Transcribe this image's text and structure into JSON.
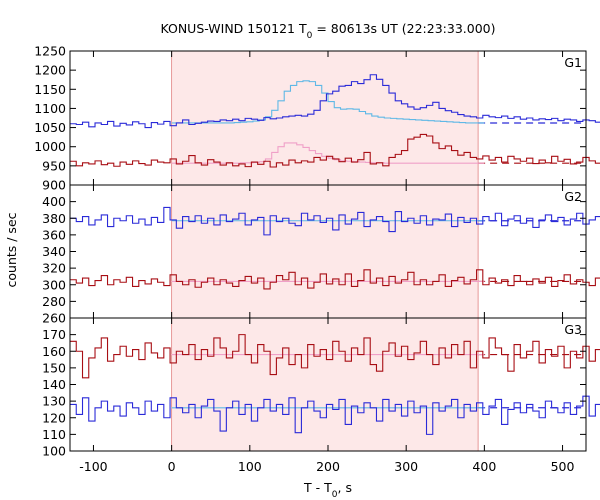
{
  "chart_data": {
    "type": "line",
    "title_main": "KONUS-WIND 150121 T",
    "title_sub": "0",
    "title_rest": " = 80613s UT (22:23:33.000)",
    "xlabel_main": "T - T",
    "xlabel_sub": "0",
    "xlabel_rest": ", s",
    "ylabel": "counts / sec",
    "xlim": [
      -130,
      530
    ],
    "x_ticks": [
      -100,
      0,
      100,
      200,
      300,
      400,
      500
    ],
    "x_tick_labels": [
      "-100",
      "0",
      "100",
      "200",
      "300",
      "400",
      "500"
    ],
    "highlight_interval": [
      0,
      392
    ],
    "highlight_color": "#fde8e8",
    "bin_width_s": 8,
    "data_x_range": [
      -130,
      392
    ],
    "colors": {
      "blue": "#2a2ad8",
      "red": "#a80e14",
      "blue_fit": "#5fb8e6",
      "red_fit": "#f0a0c8"
    },
    "panels": [
      {
        "label": "G1",
        "ylim": [
          900,
          1250
        ],
        "y_ticks": [
          900,
          950,
          1000,
          1050,
          1100,
          1150,
          1200,
          1250
        ],
        "y_tick_labels": [
          "900",
          "950",
          "1000",
          "1050",
          "1100",
          "1150",
          "1200",
          "1250"
        ],
        "series": [
          {
            "color": "blue",
            "background_level": 1062,
            "start_x": -130,
            "values": [
              1060,
              1058,
              1064,
              1052,
              1062,
              1058,
              1066,
              1054,
              1061,
              1057,
              1065,
              1060,
              1050,
              1063,
              1059,
              1066,
              1055,
              1062,
              1070,
              1058,
              1061,
              1064,
              1067,
              1066,
              1070,
              1068,
              1072,
              1068,
              1074,
              1072,
              1069,
              1076,
              1073,
              1075,
              1078,
              1080,
              1082,
              1080,
              1085,
              1095,
              1120,
              1138,
              1145,
              1158,
              1160,
              1170,
              1165,
              1175,
              1188,
              1176,
              1160,
              1140,
              1120,
              1112,
              1104,
              1098,
              1102,
              1108,
              1116,
              1100,
              1094,
              1090,
              1084,
              1080,
              1078,
              1075,
              1082,
              1078,
              1076,
              1080,
              1074,
              1078,
              1072,
              1075,
              1070,
              1073,
              1071,
              1074,
              1068,
              1072,
              1070,
              1066,
              1070,
              1068,
              1064,
              1069,
              1062,
              1066,
              1060,
              1064,
              1058,
              1062,
              1040
            ],
            "fit_from_x": 0,
            "fit": [
              1062,
              1062,
              1062,
              1062,
              1062,
              1062,
              1062,
              1062,
              1062,
              1062,
              1063,
              1064,
              1065,
              1067,
              1070,
              1078,
              1095,
              1120,
              1145,
              1160,
              1170,
              1172,
              1170,
              1160,
              1140,
              1118,
              1102,
              1098,
              1099,
              1098,
              1092,
              1086,
              1080,
              1077,
              1075,
              1074,
              1073,
              1072,
              1071,
              1070,
              1069,
              1068,
              1067,
              1066,
              1065,
              1064,
              1063,
              1062,
              1062,
              1062
            ]
          },
          {
            "color": "red",
            "background_level": 957,
            "start_x": -130,
            "values": [
              962,
              950,
              958,
              955,
              963,
              953,
              957,
              949,
              960,
              954,
              963,
              956,
              952,
              965,
              960,
              958,
              968,
              955,
              962,
              977,
              958,
              952,
              966,
              960,
              952,
              958,
              950,
              955,
              948,
              960,
              954,
              962,
              947,
              958,
              952,
              965,
              958,
              963,
              960,
              972,
              965,
              975,
              968,
              961,
              970,
              960,
              966,
              985,
              955,
              958,
              950,
              972,
              980,
              990,
              1020,
              1025,
              1032,
              1028,
              1010,
              995,
              1002,
              990,
              978,
              985,
              972,
              968,
              976,
              965,
              972,
              960,
              975,
              968,
              962,
              970,
              956,
              965,
              958,
              975,
              962,
              967,
              955,
              960,
              972,
              963,
              957,
              966,
              960,
              955,
              970,
              952,
              958,
              944,
              946
            ],
            "fit_from_x": 0,
            "fit": [
              957,
              957,
              957,
              957,
              957,
              957,
              957,
              957,
              957,
              957,
              957,
              958,
              958,
              959,
              961,
              968,
              985,
              1000,
              1010,
              1010,
              1005,
              998,
              990,
              982,
              975,
              970,
              966,
              963,
              962,
              961,
              960,
              959,
              958,
              958,
              957,
              957,
              957,
              957,
              957,
              957,
              957,
              957,
              957,
              957,
              957,
              957,
              957,
              957,
              957,
              957
            ]
          }
        ]
      },
      {
        "label": "G2",
        "ylim": [
          260,
          420
        ],
        "y_ticks": [
          260,
          280,
          300,
          320,
          340,
          360,
          380,
          400
        ],
        "y_tick_labels": [
          "260",
          "280",
          "300",
          "320",
          "340",
          "360",
          "380",
          "400"
        ],
        "series": [
          {
            "color": "blue",
            "background_level": 377,
            "start_x": -130,
            "values": [
              380,
              376,
              382,
              372,
              378,
              384,
              370,
              380,
              377,
              383,
              374,
              379,
              372,
              381,
              375,
              393,
              378,
              368,
              382,
              376,
              383,
              374,
              380,
              372,
              384,
              376,
              379,
              386,
              372,
              378,
              381,
              360,
              383,
              376,
              380,
              374,
              371,
              386,
              378,
              383,
              375,
              380,
              366,
              384,
              373,
              379,
              387,
              370,
              378,
              382,
              376,
              364,
              388,
              376,
              380,
              374,
              383,
              372,
              379,
              378,
              385,
              370,
              381,
              375,
              380,
              373,
              382,
              377,
              386,
              371,
              379,
              383,
              374,
              380,
              369,
              378,
              384,
              376,
              381,
              372,
              379,
              386,
              373,
              378,
              382,
              370,
              380,
              377,
              383,
              374,
              379,
              376,
              362
            ],
            "fit_from_x": 0,
            "fit": [
              377,
              377,
              377,
              377,
              377,
              377,
              377,
              377,
              377,
              377,
              377,
              377,
              377,
              377,
              377,
              377,
              377,
              377,
              377,
              377,
              377,
              377,
              377,
              377,
              377,
              377,
              377,
              377,
              377,
              377,
              377,
              377,
              377,
              377,
              377,
              377,
              377,
              377,
              377,
              377,
              377,
              377,
              377,
              377,
              377,
              377,
              377,
              377,
              377,
              377
            ]
          },
          {
            "color": "red",
            "background_level": 304,
            "start_x": -130,
            "values": [
              306,
              302,
              308,
              299,
              305,
              311,
              300,
              306,
              303,
              309,
              298,
              305,
              301,
              307,
              303,
              299,
              312,
              304,
              300,
              306,
              297,
              303,
              308,
              300,
              306,
              302,
              298,
              305,
              310,
              302,
              308,
              295,
              303,
              311,
              306,
              315,
              300,
              308,
              296,
              303,
              313,
              301,
              307,
              300,
              313,
              298,
              305,
              318,
              302,
              308,
              299,
              310,
              302,
              306,
              315,
              300,
              306,
              300,
              304,
              312,
              298,
              305,
              309,
              301,
              306,
              318,
              300,
              308,
              302,
              306,
              299,
              311,
              304,
              300,
              307,
              302,
              309,
              298,
              305,
              312,
              301,
              306,
              303,
              299,
              308,
              302,
              306,
              300,
              310,
              304,
              301,
              308,
              305
            ],
            "fit_from_x": 0,
            "fit": [
              304,
              304,
              304,
              304,
              304,
              304,
              304,
              304,
              304,
              304,
              304,
              304,
              304,
              304,
              304,
              304,
              304,
              304,
              304,
              304,
              304,
              304,
              304,
              304,
              304,
              304,
              304,
              304,
              304,
              304,
              304,
              304,
              304,
              304,
              304,
              304,
              304,
              304,
              304,
              304,
              304,
              304,
              304,
              304,
              304,
              304,
              304,
              304,
              304,
              304
            ]
          }
        ]
      },
      {
        "label": "G3",
        "ylim": [
          100,
          180
        ],
        "y_ticks": [
          100,
          110,
          120,
          130,
          140,
          150,
          160,
          170
        ],
        "y_tick_labels": [
          "100",
          "110",
          "120",
          "130",
          "140",
          "150",
          "160",
          "170"
        ],
        "series": [
          {
            "color": "red",
            "background_level": 158,
            "start_x": -130,
            "values": [
              166,
              160,
              144,
              156,
              162,
              168,
              154,
              158,
              163,
              157,
              161,
              155,
              165,
              159,
              156,
              162,
              153,
              160,
              158,
              164,
              155,
              161,
              157,
              168,
              162,
              156,
              160,
              170,
              158,
              153,
              164,
              160,
              146,
              156,
              162,
              152,
              158,
              150,
              164,
              157,
              161,
              155,
              166,
              160,
              154,
              162,
              158,
              168,
              152,
              148,
              160,
              165,
              157,
              163,
              155,
              159,
              166,
              158,
              152,
              162,
              156,
              164,
              158,
              166,
              150,
              160,
              156,
              168,
              162,
              158,
              148,
              164,
              156,
              160,
              166,
              153,
              161,
              157,
              163,
              150,
              160,
              156,
              163,
              154,
              161,
              158,
              165,
              152,
              160,
              157,
              163,
              155,
              167
            ],
            "fit_from_x": 0,
            "fit": [
              158,
              158,
              158,
              158,
              158,
              158,
              158,
              158,
              158,
              158,
              158,
              158,
              158,
              158,
              158,
              158,
              158,
              158,
              158,
              158,
              158,
              158,
              158,
              158,
              158,
              158,
              158,
              158,
              158,
              158,
              158,
              158,
              158,
              158,
              158,
              158,
              158,
              158,
              158,
              158,
              158,
              158,
              158,
              158,
              158,
              158,
              158,
              158,
              158,
              158
            ]
          },
          {
            "color": "blue",
            "background_level": 126,
            "start_x": -130,
            "values": [
              128,
              122,
              132,
              118,
              126,
              130,
              124,
              127,
              121,
              129,
              126,
              122,
              130,
              124,
              128,
              120,
              132,
              126,
              123,
              128,
              120,
              127,
              131,
              124,
              112,
              126,
              130,
              122,
              128,
              118,
              126,
              131,
              124,
              128,
              122,
              132,
              111,
              126,
              130,
              124,
              120,
              128,
              125,
              131,
              116,
              127,
              123,
              129,
              126,
              118,
              131,
              124,
              128,
              121,
              130,
              123,
              127,
              110,
              129,
              124,
              127,
              131,
              120,
              128,
              124,
              129,
              122,
              127,
              131,
              116,
              125,
              129,
              123,
              128,
              124,
              120,
              130,
              126,
              123,
              129,
              122,
              127,
              133,
              121,
              128,
              124,
              130,
              123,
              127,
              120,
              129,
              125,
              119
            ],
            "fit_from_x": 0,
            "fit": [
              126,
              126,
              126,
              126,
              126,
              126,
              126,
              126,
              126,
              126,
              126,
              126,
              126,
              126,
              126,
              126,
              126,
              126,
              126,
              126,
              126,
              126,
              126,
              126,
              126,
              126,
              126,
              126,
              126,
              126,
              126,
              126,
              126,
              126,
              126,
              126,
              126,
              126,
              126,
              126,
              126,
              126,
              126,
              126,
              126,
              126,
              126,
              126,
              126,
              126
            ]
          }
        ]
      }
    ]
  }
}
